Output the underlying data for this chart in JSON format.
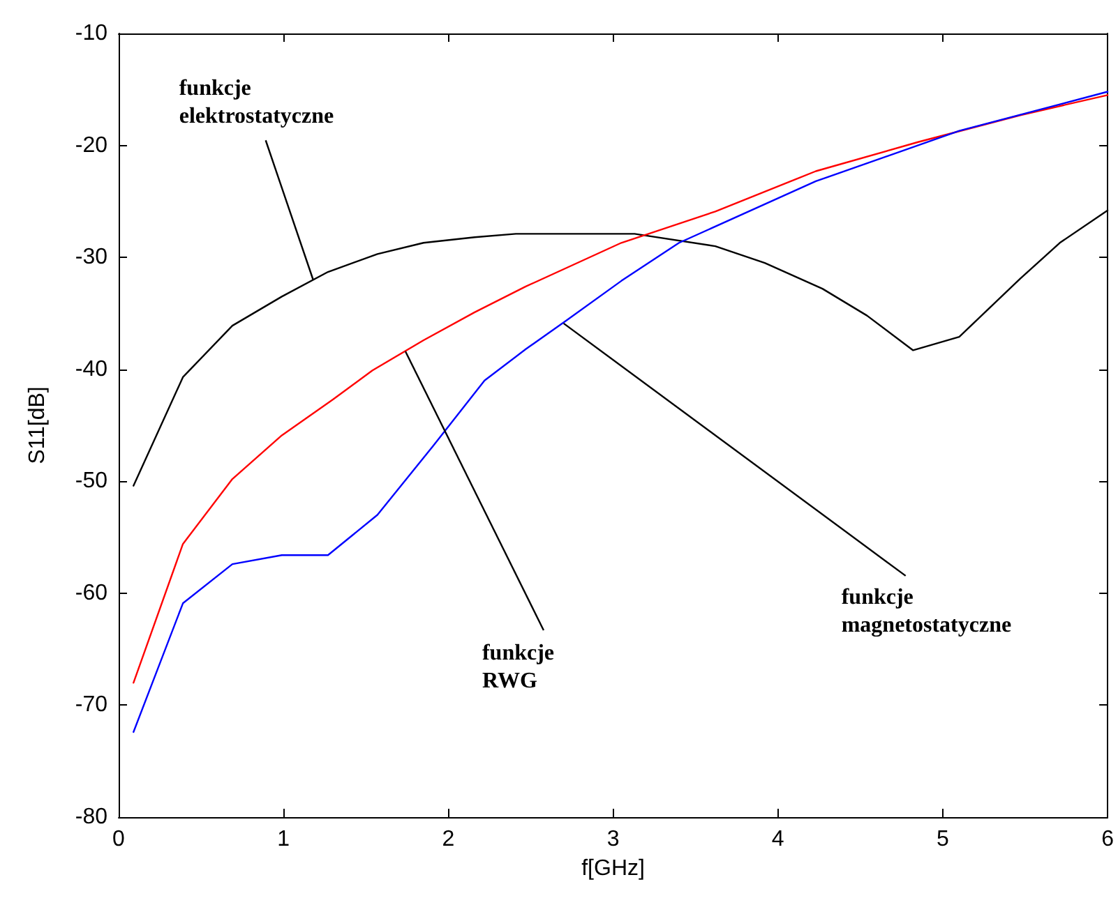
{
  "chart_data": {
    "type": "line",
    "xlabel": "f[GHz]",
    "ylabel": "S11[dB]",
    "xlim": [
      0,
      6
    ],
    "xticks": [
      0,
      1,
      2,
      3,
      4,
      5,
      6
    ],
    "ylim": [
      -80,
      -10
    ],
    "yticks": [
      -80,
      -70,
      -60,
      -50,
      -40,
      -30,
      -20,
      -10
    ],
    "grid": false,
    "marker": "none",
    "line_style": "solid",
    "series": [
      {
        "color": "#000000",
        "x": [
          0.09,
          0.39,
          0.69,
          0.99,
          1.27,
          1.57,
          1.85,
          2.16,
          2.41,
          3.13,
          3.62,
          3.92,
          4.27,
          4.54,
          4.82,
          5.1,
          5.47,
          5.71,
          6.0
        ],
        "values": [
          -50.4,
          -40.7,
          -36.1,
          -33.5,
          -31.3,
          -29.7,
          -28.7,
          -28.2,
          -27.9,
          -27.9,
          -29.0,
          -30.5,
          -32.8,
          -35.2,
          -38.3,
          -37.1,
          -31.9,
          -28.7,
          -25.8
        ]
      },
      {
        "color": "#ff0000",
        "x": [
          0.09,
          0.39,
          0.69,
          0.99,
          1.3,
          1.54,
          1.85,
          2.16,
          2.47,
          3.05,
          3.62,
          4.23,
          4.85,
          5.47,
          6.0
        ],
        "values": [
          -68.0,
          -55.6,
          -49.8,
          -45.9,
          -42.7,
          -40.1,
          -37.4,
          -34.9,
          -32.6,
          -28.7,
          -25.9,
          -22.3,
          -19.7,
          -17.3,
          -15.5
        ]
      },
      {
        "color": "#0000ff",
        "x": [
          0.09,
          0.39,
          0.69,
          0.99,
          1.27,
          1.57,
          1.91,
          2.22,
          2.47,
          2.71,
          3.05,
          3.4,
          4.23,
          5.1,
          6.0
        ],
        "values": [
          -72.4,
          -60.9,
          -57.4,
          -56.6,
          -56.6,
          -53.0,
          -46.8,
          -41.0,
          -38.2,
          -35.7,
          -32.1,
          -28.7,
          -23.2,
          -18.7,
          -15.2
        ]
      }
    ],
    "annotations": [
      {
        "text": "funkcje elektrostatyczne",
        "x": 1.18,
        "y": -32.0
      },
      {
        "text": "funkcje RWG",
        "x": 1.74,
        "y": -38.4
      },
      {
        "text": "funkcje magnetostatyczne",
        "x": 2.7,
        "y": -35.9
      }
    ]
  }
}
